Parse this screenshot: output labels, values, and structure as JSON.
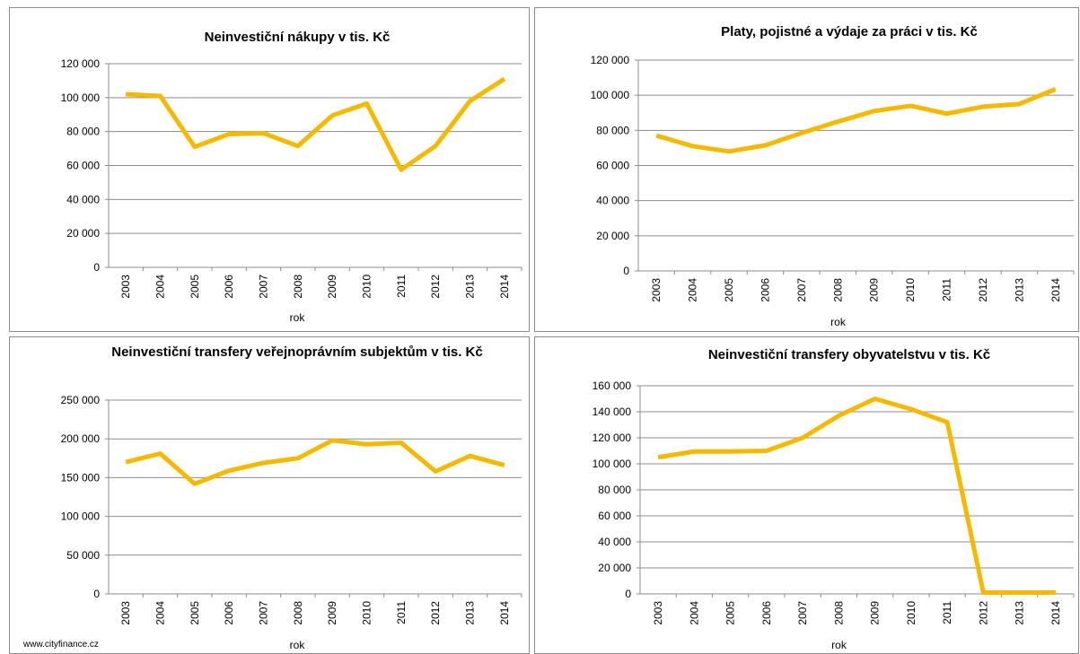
{
  "chart_data": [
    {
      "type": "line",
      "title": "Neinvestiční nákupy v tis. Kč",
      "x_label": "rok",
      "categories": [
        "2003",
        "2004",
        "2005",
        "2006",
        "2007",
        "2008",
        "2009",
        "2010",
        "2011",
        "2012",
        "2013",
        "2014"
      ],
      "values": [
        102000,
        101000,
        71000,
        78500,
        79000,
        71500,
        89500,
        96500,
        57500,
        71500,
        98000,
        111000
      ],
      "color": "#f7b900",
      "grid": true,
      "ylim": [
        0,
        120000
      ],
      "yticks": [
        0,
        {
          "value": 20000,
          "label": "20 000"
        },
        {
          "value": 40000,
          "label": "40 000"
        },
        {
          "value": 60000,
          "label": "60 000"
        },
        {
          "value": 80000,
          "label": "80 000"
        },
        {
          "value": 100000,
          "label": "100 000"
        },
        {
          "value": 120000,
          "label": "120 000"
        }
      ]
    },
    {
      "type": "line",
      "title": "Platy, pojistné a výdaje za práci v tis. Kč",
      "x_label": "rok",
      "categories": [
        "2003",
        "2004",
        "2005",
        "2006",
        "2007",
        "2008",
        "2009",
        "2010",
        "2011",
        "2012",
        "2013",
        "2014"
      ],
      "values": [
        77000,
        71000,
        68000,
        71500,
        78500,
        85000,
        91000,
        94000,
        89500,
        93500,
        95000,
        103500
      ],
      "color": "#f7b900",
      "grid": true,
      "ylim": [
        0,
        120000
      ],
      "yticks": [
        0,
        {
          "value": 20000,
          "label": "20 000"
        },
        {
          "value": 40000,
          "label": "40 000"
        },
        {
          "value": 60000,
          "label": "60 000"
        },
        {
          "value": 80000,
          "label": "80 000"
        },
        {
          "value": 100000,
          "label": "100 000"
        },
        {
          "value": 120000,
          "label": "120 000"
        }
      ]
    },
    {
      "type": "line",
      "title": "Neinvestiční transfery veřejnoprávním subjektům v tis. Kč",
      "x_label": "rok",
      "categories": [
        "2003",
        "2004",
        "2005",
        "2006",
        "2007",
        "2008",
        "2009",
        "2010",
        "2011",
        "2012",
        "2013",
        "2014"
      ],
      "values": [
        170000,
        181000,
        142000,
        159000,
        169000,
        175000,
        198000,
        193000,
        195000,
        158000,
        178000,
        166000
      ],
      "color": "#f7b900",
      "grid": true,
      "ylim": [
        0,
        250000
      ],
      "yticks": [
        0,
        {
          "value": 50000,
          "label": "50 000"
        },
        {
          "value": 100000,
          "label": "100 000"
        },
        {
          "value": 150000,
          "label": "150 000"
        },
        {
          "value": 200000,
          "label": "200 000"
        },
        {
          "value": 250000,
          "label": "250 000"
        }
      ]
    },
    {
      "type": "line",
      "title": "Neinvestiční transfery obyvatelstvu v tis. Kč",
      "x_label": "rok",
      "categories": [
        "2003",
        "2004",
        "2005",
        "2006",
        "2007",
        "2008",
        "2009",
        "2010",
        "2011",
        "2012",
        "2013",
        "2014"
      ],
      "values": [
        105000,
        109500,
        109500,
        110000,
        120000,
        137000,
        150000,
        142000,
        132000,
        1000,
        1000,
        1000
      ],
      "color": "#f7b900",
      "grid": true,
      "ylim": [
        0,
        160000
      ],
      "yticks": [
        0,
        {
          "value": 20000,
          "label": "20 000"
        },
        {
          "value": 40000,
          "label": "40 000"
        },
        {
          "value": 60000,
          "label": "60 000"
        },
        {
          "value": 80000,
          "label": "80 000"
        },
        {
          "value": 100000,
          "label": "100 000"
        },
        {
          "value": 120000,
          "label": "120 000"
        },
        {
          "value": 140000,
          "label": "140 000"
        },
        {
          "value": 160000,
          "label": "160 000"
        }
      ]
    }
  ],
  "footer": "www.cityfinance.cz"
}
